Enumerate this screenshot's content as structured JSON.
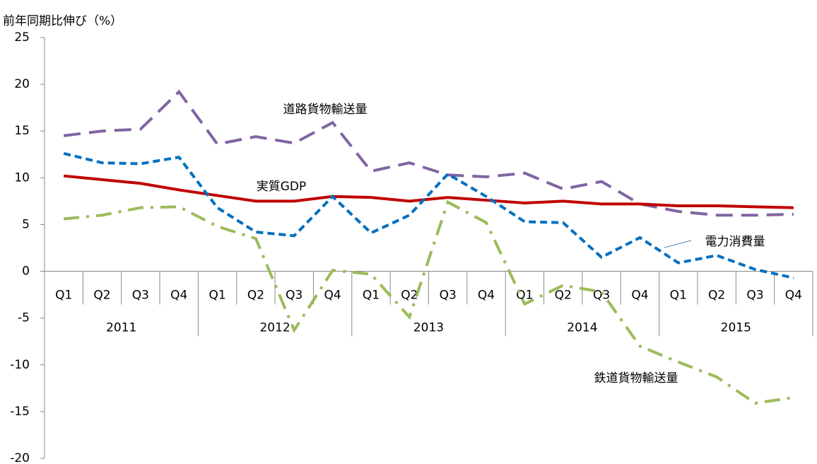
{
  "chart_data": {
    "type": "line",
    "ylabel": "前年同期比伸び（%）",
    "categories": [
      "Q1",
      "Q2",
      "Q3",
      "Q4",
      "Q1",
      "Q2",
      "Q3",
      "Q4",
      "Q1",
      "Q2",
      "Q3",
      "Q4",
      "Q1",
      "Q2",
      "Q3",
      "Q4",
      "Q1",
      "Q2",
      "Q3",
      "Q4"
    ],
    "groups": [
      "2011",
      "2012",
      "2013",
      "2014",
      "2015"
    ],
    "ylim": [
      -20,
      25
    ],
    "yticks": [
      -20,
      -15,
      -10,
      -5,
      0,
      5,
      10,
      15,
      20,
      25
    ],
    "series": [
      {
        "name": "道路貨物輸送量",
        "color": "#8064a2",
        "dash": "24 12",
        "values": [
          14.5,
          15.0,
          15.2,
          19.2,
          13.6,
          14.4,
          13.7,
          15.9,
          10.7,
          11.6,
          10.3,
          10.1,
          10.5,
          8.8,
          9.6,
          7.2,
          6.4,
          6.0,
          6.0,
          6.1
        ]
      },
      {
        "name": "実質GDP",
        "color": "#c00000",
        "dash": "none",
        "values": [
          10.2,
          9.8,
          9.4,
          8.7,
          8.1,
          7.5,
          7.5,
          8.0,
          7.9,
          7.5,
          7.9,
          7.6,
          7.3,
          7.5,
          7.2,
          7.2,
          7.0,
          7.0,
          6.9,
          6.8
        ]
      },
      {
        "name": "電力消費量",
        "color": "#0070c0",
        "dash": "10 6",
        "values": [
          12.6,
          11.6,
          11.5,
          12.2,
          6.8,
          4.2,
          3.8,
          8.0,
          4.1,
          6.0,
          10.4,
          8.0,
          5.3,
          5.2,
          1.5,
          3.6,
          0.9,
          1.7,
          0.2,
          -0.7
        ]
      },
      {
        "name": "鉄道貨物輸送量",
        "color": "#9bbb59",
        "dash": "22 10 4 10",
        "values": [
          5.6,
          6.0,
          6.8,
          6.9,
          4.8,
          3.5,
          -6.3,
          0.1,
          -0.3,
          -4.9,
          7.4,
          5.2,
          -3.5,
          -1.5,
          -2.2,
          -8.0,
          -9.7,
          -11.3,
          -14.1,
          -13.5
        ]
      }
    ]
  }
}
